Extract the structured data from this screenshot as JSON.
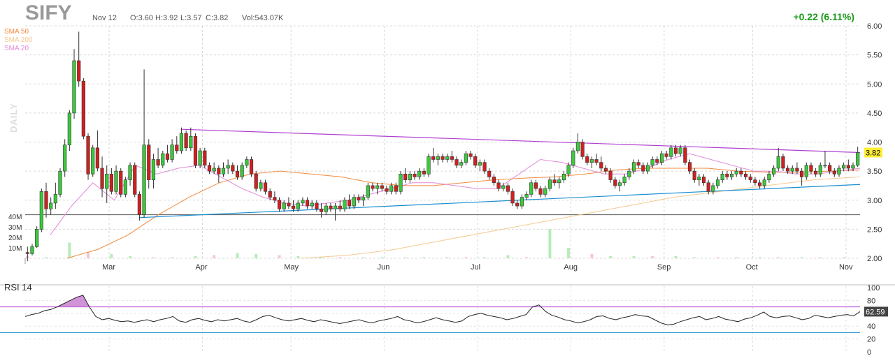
{
  "header": {
    "ticker": "SIFY",
    "date": "Nov 12",
    "open": "O:3.60",
    "high": "H:3.92",
    "low": "L:3.57",
    "close": "C:3.82",
    "volume": "Vol:543.07K",
    "change": "+0.22 (6.11%)",
    "timeframe": "DAILY"
  },
  "legend": [
    {
      "label": "SMA 50",
      "color": "#f28a3c"
    },
    {
      "label": "SMA 200",
      "color": "#f5c98f"
    },
    {
      "label": "SMA 20",
      "color": "#e08ad8"
    }
  ],
  "colors": {
    "up": "#3cc93c",
    "down": "#d02020",
    "sma50": "#f28a3c",
    "sma200": "#f5c98f",
    "sma20": "#e08ad8",
    "trend_upper": "#b040d0",
    "trend_lower": "#1c8fd0",
    "support": "#555555",
    "rsi_line": "#222222",
    "rsi_70": "#b040d0",
    "rsi_30": "#1c8fd0"
  },
  "price_tag": "3.82",
  "rsi_tag": "62.59",
  "rsi_label": "RSI 14",
  "chart_data": [
    {
      "type": "candlestick",
      "title": "SIFY",
      "x_labels": [
        "Mar",
        "Apr",
        "May",
        "Jun",
        "Jul",
        "Aug",
        "Sep",
        "Oct",
        "Nov"
      ],
      "y_ticks": [
        "6.00",
        "5.50",
        "5.00",
        "4.50",
        "4.00",
        "3.50",
        "3.00",
        "2.50",
        "2.00"
      ],
      "ylim": [
        2.0,
        6.0
      ],
      "volume_ticks": [
        "40M",
        "30M",
        "20M",
        "10M"
      ],
      "grid": true,
      "ohlc": [
        [
          2.1,
          2.2,
          1.95,
          2.08
        ],
        [
          2.08,
          2.25,
          2.05,
          2.2
        ],
        [
          2.2,
          2.55,
          2.18,
          2.5
        ],
        [
          2.5,
          3.2,
          2.45,
          3.15
        ],
        [
          3.15,
          3.3,
          2.7,
          2.85
        ],
        [
          2.85,
          3.05,
          2.75,
          2.95
        ],
        [
          2.95,
          3.3,
          2.85,
          3.1
        ],
        [
          3.1,
          3.55,
          3.05,
          3.5
        ],
        [
          3.5,
          4.05,
          3.4,
          3.95
        ],
        [
          3.95,
          4.55,
          3.85,
          4.5
        ],
        [
          4.5,
          5.6,
          4.4,
          5.4
        ],
        [
          5.4,
          5.9,
          4.95,
          5.05
        ],
        [
          5.05,
          5.1,
          4.05,
          4.1
        ],
        [
          4.1,
          4.15,
          3.35,
          3.45
        ],
        [
          3.45,
          3.95,
          3.4,
          3.9
        ],
        [
          3.9,
          4.2,
          3.5,
          3.55
        ],
        [
          3.55,
          3.75,
          3.05,
          3.2
        ],
        [
          3.2,
          3.6,
          2.95,
          3.45
        ],
        [
          3.45,
          3.55,
          3.1,
          3.15
        ],
        [
          3.15,
          3.6,
          3.1,
          3.5
        ],
        [
          3.5,
          3.55,
          3.05,
          3.1
        ],
        [
          3.1,
          3.4,
          3.05,
          3.35
        ],
        [
          3.35,
          3.65,
          3.25,
          3.6
        ],
        [
          3.6,
          3.65,
          3.05,
          3.1
        ],
        [
          3.1,
          3.15,
          2.65,
          2.75
        ],
        [
          2.75,
          5.25,
          2.7,
          3.95
        ],
        [
          3.95,
          4.05,
          3.2,
          3.35
        ],
        [
          3.35,
          3.8,
          3.2,
          3.7
        ],
        [
          3.7,
          3.9,
          3.55,
          3.6
        ],
        [
          3.6,
          3.85,
          3.55,
          3.8
        ],
        [
          3.8,
          3.95,
          3.65,
          3.7
        ],
        [
          3.7,
          4.05,
          3.65,
          3.95
        ],
        [
          3.95,
          4.1,
          3.8,
          3.85
        ],
        [
          3.85,
          4.25,
          3.8,
          4.15
        ],
        [
          4.15,
          4.2,
          3.85,
          3.9
        ],
        [
          3.9,
          4.25,
          3.85,
          4.1
        ],
        [
          4.1,
          4.15,
          3.55,
          3.6
        ],
        [
          3.6,
          3.9,
          3.55,
          3.85
        ],
        [
          3.85,
          3.9,
          3.55,
          3.6
        ],
        [
          3.6,
          3.65,
          3.45,
          3.5
        ],
        [
          3.5,
          3.65,
          3.45,
          3.55
        ],
        [
          3.55,
          3.6,
          3.3,
          3.45
        ],
        [
          3.45,
          3.65,
          3.4,
          3.55
        ],
        [
          3.55,
          3.7,
          3.45,
          3.6
        ],
        [
          3.6,
          3.65,
          3.45,
          3.5
        ],
        [
          3.5,
          3.6,
          3.35,
          3.4
        ],
        [
          3.4,
          3.65,
          3.35,
          3.6
        ],
        [
          3.6,
          3.75,
          3.55,
          3.7
        ],
        [
          3.7,
          3.75,
          3.4,
          3.45
        ],
        [
          3.45,
          3.5,
          3.15,
          3.2
        ],
        [
          3.2,
          3.35,
          3.15,
          3.3
        ],
        [
          3.3,
          3.35,
          3.1,
          3.15
        ],
        [
          3.15,
          3.2,
          3.0,
          3.05
        ],
        [
          3.05,
          3.15,
          2.95,
          3.0
        ],
        [
          3.0,
          3.05,
          2.8,
          2.85
        ],
        [
          2.85,
          3.0,
          2.8,
          2.95
        ],
        [
          2.95,
          3.05,
          2.85,
          2.9
        ],
        [
          2.9,
          3.0,
          2.8,
          2.85
        ],
        [
          2.85,
          3.0,
          2.8,
          2.95
        ],
        [
          2.95,
          3.05,
          2.9,
          3.0
        ],
        [
          3.0,
          3.05,
          2.85,
          2.9
        ],
        [
          2.9,
          3.0,
          2.85,
          2.95
        ],
        [
          2.95,
          3.0,
          2.8,
          2.85
        ],
        [
          2.85,
          2.95,
          2.7,
          2.8
        ],
        [
          2.8,
          2.95,
          2.75,
          2.9
        ],
        [
          2.9,
          2.95,
          2.8,
          2.85
        ],
        [
          2.85,
          2.95,
          2.65,
          2.9
        ],
        [
          2.9,
          3.0,
          2.8,
          2.85
        ],
        [
          2.85,
          3.05,
          2.8,
          3.0
        ],
        [
          3.0,
          3.1,
          2.85,
          2.9
        ],
        [
          2.9,
          3.1,
          2.85,
          3.05
        ],
        [
          3.05,
          3.1,
          2.95,
          3.0
        ],
        [
          3.0,
          3.1,
          2.9,
          3.05
        ],
        [
          3.05,
          3.3,
          3.0,
          3.25
        ],
        [
          3.25,
          3.3,
          3.15,
          3.2
        ],
        [
          3.2,
          3.3,
          3.1,
          3.25
        ],
        [
          3.25,
          3.3,
          3.15,
          3.2
        ],
        [
          3.2,
          3.25,
          3.1,
          3.15
        ],
        [
          3.15,
          3.3,
          3.1,
          3.25
        ],
        [
          3.25,
          3.3,
          3.1,
          3.15
        ],
        [
          3.15,
          3.5,
          3.1,
          3.45
        ],
        [
          3.45,
          3.55,
          3.3,
          3.35
        ],
        [
          3.35,
          3.5,
          3.3,
          3.45
        ],
        [
          3.45,
          3.5,
          3.35,
          3.4
        ],
        [
          3.4,
          3.55,
          3.35,
          3.5
        ],
        [
          3.5,
          3.55,
          3.4,
          3.45
        ],
        [
          3.45,
          3.8,
          3.4,
          3.75
        ],
        [
          3.75,
          3.9,
          3.65,
          3.7
        ],
        [
          3.7,
          3.8,
          3.6,
          3.75
        ],
        [
          3.75,
          3.8,
          3.65,
          3.7
        ],
        [
          3.7,
          3.8,
          3.65,
          3.75
        ],
        [
          3.75,
          3.85,
          3.65,
          3.7
        ],
        [
          3.7,
          3.75,
          3.55,
          3.6
        ],
        [
          3.6,
          3.7,
          3.55,
          3.65
        ],
        [
          3.65,
          3.85,
          3.6,
          3.8
        ],
        [
          3.8,
          3.85,
          3.7,
          3.75
        ],
        [
          3.75,
          3.8,
          3.55,
          3.6
        ],
        [
          3.6,
          3.7,
          3.5,
          3.65
        ],
        [
          3.65,
          3.7,
          3.45,
          3.5
        ],
        [
          3.5,
          3.55,
          3.35,
          3.4
        ],
        [
          3.4,
          3.45,
          3.25,
          3.3
        ],
        [
          3.3,
          3.35,
          3.15,
          3.2
        ],
        [
          3.2,
          3.3,
          3.15,
          3.25
        ],
        [
          3.25,
          3.3,
          3.1,
          3.15
        ],
        [
          3.15,
          3.2,
          2.9,
          2.95
        ],
        [
          2.95,
          3.0,
          2.85,
          2.9
        ],
        [
          2.9,
          3.1,
          2.85,
          3.05
        ],
        [
          3.05,
          3.15,
          3.0,
          3.1
        ],
        [
          3.1,
          3.35,
          3.05,
          3.3
        ],
        [
          3.3,
          3.35,
          3.15,
          3.2
        ],
        [
          3.2,
          3.25,
          3.05,
          3.1
        ],
        [
          3.1,
          3.25,
          3.05,
          3.2
        ],
        [
          3.2,
          3.4,
          3.15,
          3.35
        ],
        [
          3.35,
          3.45,
          3.25,
          3.3
        ],
        [
          3.3,
          3.4,
          3.2,
          3.35
        ],
        [
          3.35,
          3.5,
          3.3,
          3.45
        ],
        [
          3.45,
          3.65,
          3.4,
          3.6
        ],
        [
          3.6,
          3.9,
          3.55,
          3.85
        ],
        [
          3.85,
          4.15,
          3.8,
          4.0
        ],
        [
          4.0,
          4.05,
          3.7,
          3.75
        ],
        [
          3.75,
          3.8,
          3.6,
          3.65
        ],
        [
          3.65,
          3.75,
          3.55,
          3.7
        ],
        [
          3.7,
          3.8,
          3.6,
          3.65
        ],
        [
          3.65,
          3.75,
          3.5,
          3.55
        ],
        [
          3.55,
          3.6,
          3.45,
          3.5
        ],
        [
          3.5,
          3.55,
          3.3,
          3.35
        ],
        [
          3.35,
          3.4,
          3.2,
          3.25
        ],
        [
          3.25,
          3.35,
          3.15,
          3.3
        ],
        [
          3.3,
          3.45,
          3.25,
          3.4
        ],
        [
          3.4,
          3.55,
          3.35,
          3.5
        ],
        [
          3.5,
          3.7,
          3.45,
          3.65
        ],
        [
          3.65,
          3.7,
          3.55,
          3.6
        ],
        [
          3.6,
          3.65,
          3.45,
          3.5
        ],
        [
          3.5,
          3.65,
          3.45,
          3.6
        ],
        [
          3.6,
          3.75,
          3.55,
          3.7
        ],
        [
          3.7,
          3.75,
          3.6,
          3.65
        ],
        [
          3.65,
          3.85,
          3.6,
          3.8
        ],
        [
          3.8,
          3.85,
          3.7,
          3.75
        ],
        [
          3.75,
          3.95,
          3.7,
          3.9
        ],
        [
          3.9,
          3.95,
          3.75,
          3.8
        ],
        [
          3.8,
          3.95,
          3.75,
          3.9
        ],
        [
          3.9,
          3.95,
          3.6,
          3.65
        ],
        [
          3.65,
          3.7,
          3.45,
          3.5
        ],
        [
          3.5,
          3.55,
          3.3,
          3.35
        ],
        [
          3.35,
          3.45,
          3.25,
          3.4
        ],
        [
          3.4,
          3.45,
          3.25,
          3.3
        ],
        [
          3.3,
          3.35,
          3.1,
          3.15
        ],
        [
          3.15,
          3.3,
          3.1,
          3.25
        ],
        [
          3.25,
          3.4,
          3.2,
          3.35
        ],
        [
          3.35,
          3.5,
          3.3,
          3.45
        ],
        [
          3.45,
          3.5,
          3.35,
          3.4
        ],
        [
          3.4,
          3.5,
          3.35,
          3.45
        ],
        [
          3.45,
          3.55,
          3.4,
          3.5
        ],
        [
          3.5,
          3.55,
          3.4,
          3.45
        ],
        [
          3.45,
          3.5,
          3.35,
          3.4
        ],
        [
          3.4,
          3.45,
          3.3,
          3.35
        ],
        [
          3.35,
          3.4,
          3.25,
          3.3
        ],
        [
          3.3,
          3.35,
          3.2,
          3.25
        ],
        [
          3.25,
          3.4,
          3.2,
          3.35
        ],
        [
          3.35,
          3.5,
          3.3,
          3.45
        ],
        [
          3.45,
          3.6,
          3.4,
          3.55
        ],
        [
          3.55,
          3.9,
          3.5,
          3.75
        ],
        [
          3.75,
          3.8,
          3.5,
          3.55
        ],
        [
          3.55,
          3.6,
          3.45,
          3.5
        ],
        [
          3.5,
          3.6,
          3.45,
          3.55
        ],
        [
          3.55,
          3.65,
          3.45,
          3.5
        ],
        [
          3.5,
          3.55,
          3.25,
          3.4
        ],
        [
          3.4,
          3.65,
          3.35,
          3.6
        ],
        [
          3.6,
          3.65,
          3.45,
          3.5
        ],
        [
          3.5,
          3.55,
          3.4,
          3.45
        ],
        [
          3.45,
          3.65,
          3.4,
          3.6
        ],
        [
          3.6,
          3.85,
          3.55,
          3.6
        ],
        [
          3.6,
          3.65,
          3.45,
          3.5
        ],
        [
          3.5,
          3.55,
          3.4,
          3.45
        ],
        [
          3.45,
          3.6,
          3.4,
          3.55
        ],
        [
          3.55,
          3.65,
          3.5,
          3.6
        ],
        [
          3.6,
          3.7,
          3.5,
          3.55
        ],
        [
          3.55,
          3.65,
          3.5,
          3.6
        ],
        [
          3.6,
          3.92,
          3.57,
          3.82
        ]
      ],
      "volume_m": [
        2,
        1,
        15,
        6,
        4,
        2,
        1,
        1,
        2,
        3,
        5,
        4,
        3,
        2,
        1,
        1,
        1,
        1,
        1,
        1,
        1,
        1,
        1,
        3,
        1,
        28,
        10,
        4,
        2,
        2,
        2,
        2,
        1,
        1,
        1,
        1,
        1,
        1,
        1,
        1
      ],
      "sma20": [
        2.4,
        2.9,
        3.3,
        3.0,
        3.6,
        3.45,
        3.55,
        3.6,
        3.4,
        3.2,
        3.05,
        2.95,
        2.9,
        2.95,
        3.0,
        3.1,
        3.2,
        3.3,
        3.3,
        3.25,
        3.2,
        3.2,
        3.45,
        3.7,
        3.65,
        3.55,
        3.45,
        3.45,
        3.55,
        3.7,
        3.8,
        3.7,
        3.6,
        3.5,
        3.5,
        3.45,
        3.45,
        3.5,
        3.55
      ],
      "sma50": [
        2.0,
        2.15,
        2.4,
        2.75,
        3.05,
        3.3,
        3.45,
        3.5,
        3.45,
        3.4,
        3.3,
        3.25,
        3.25,
        3.3,
        3.35,
        3.38,
        3.4,
        3.45,
        3.52,
        3.55,
        3.55,
        3.55,
        3.5,
        3.48,
        3.48,
        3.5,
        3.52
      ],
      "sma200": [
        2.0,
        2.05,
        2.15,
        2.3,
        2.45,
        2.6,
        2.75,
        2.9,
        3.05,
        3.15,
        3.25,
        3.35,
        3.4
      ],
      "trend_upper": {
        "from": 4.22,
        "to": 3.82
      },
      "trend_lower": {
        "from": 2.7,
        "to": 3.27
      },
      "support_level": 2.75,
      "rsi": {
        "ticks": [
          "100",
          "80",
          "60",
          "40",
          "20",
          "0"
        ],
        "levels": [
          70,
          30
        ],
        "values": [
          55,
          58,
          60,
          64,
          66,
          70,
          75,
          80,
          85,
          88,
          70,
          55,
          50,
          52,
          49,
          47,
          48,
          46,
          48,
          50,
          47,
          50,
          52,
          55,
          48,
          46,
          50,
          52,
          49,
          47,
          50,
          48,
          50,
          52,
          48,
          46,
          50,
          55,
          57,
          53,
          50,
          48,
          50,
          52,
          49,
          47,
          50,
          48,
          46,
          44,
          46,
          48,
          50,
          47,
          45,
          48,
          50,
          52,
          55,
          50,
          48,
          45,
          47,
          50,
          53,
          50,
          48,
          46,
          48,
          55,
          58,
          60,
          57,
          55,
          53,
          50,
          52,
          55,
          58,
          70,
          73,
          63,
          57,
          54,
          50,
          48,
          45,
          47,
          50,
          55,
          56,
          52,
          50,
          53,
          55,
          58,
          56,
          55,
          50,
          45,
          42,
          43,
          47,
          50,
          53,
          55,
          50,
          52,
          55,
          51,
          49,
          47,
          51,
          53,
          57,
          62,
          55,
          53,
          55,
          56,
          53,
          50,
          52,
          57,
          55,
          53,
          55,
          57,
          58,
          56,
          62.59
        ]
      }
    }
  ]
}
